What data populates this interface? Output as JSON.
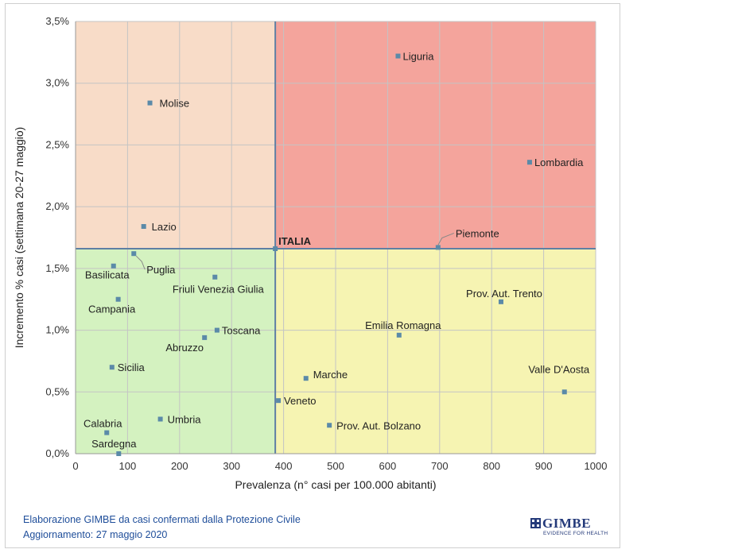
{
  "chart_data": {
    "type": "scatter",
    "title": "",
    "xlabel": "Prevalenza  (n° casi per 100.000 abitanti)",
    "ylabel": "Incremento %  casi (settimana 20-27 maggio)",
    "xlim": [
      0,
      1000
    ],
    "ylim": [
      0,
      3.5
    ],
    "x_ticks": [
      0,
      100,
      200,
      300,
      400,
      500,
      600,
      700,
      800,
      900,
      1000
    ],
    "x_tick_labels": [
      "0",
      "100",
      "200",
      "300",
      "400",
      "500",
      "600",
      "700",
      "800",
      "900",
      "1000"
    ],
    "y_ticks": [
      0,
      0.5,
      1.0,
      1.5,
      2.0,
      2.5,
      3.0,
      3.5
    ],
    "y_tick_labels": [
      "0,0%",
      "0,5%",
      "1,0%",
      "1,5%",
      "2,0%",
      "2,5%",
      "3,0%",
      "3,5%"
    ],
    "grid": true,
    "reference": {
      "name": "ITALIA",
      "x": 384,
      "y": 1.66
    },
    "quadrant_colors": {
      "top_left": "#f8dcc8",
      "top_right": "#f4a49c",
      "bottom_left": "#d4f2c0",
      "bottom_right": "#f6f4b2"
    },
    "marker_color": "#5b8aa8",
    "reference_line_color": "#5f7fa4",
    "points": [
      {
        "name": "Liguria",
        "x": 620,
        "y": 3.22
      },
      {
        "name": "Molise",
        "x": 143,
        "y": 2.84
      },
      {
        "name": "Lombardia",
        "x": 873,
        "y": 2.36
      },
      {
        "name": "Lazio",
        "x": 131,
        "y": 1.84
      },
      {
        "name": "Piemonte",
        "x": 697,
        "y": 1.67
      },
      {
        "name": "Puglia",
        "x": 112,
        "y": 1.62
      },
      {
        "name": "Basilicata",
        "x": 73,
        "y": 1.52
      },
      {
        "name": "Friuli Venezia Giulia",
        "x": 268,
        "y": 1.43
      },
      {
        "name": "Campania",
        "x": 82,
        "y": 1.25
      },
      {
        "name": "Prov. Aut. Trento",
        "x": 818,
        "y": 1.23
      },
      {
        "name": "Toscana",
        "x": 272,
        "y": 1.0
      },
      {
        "name": "Emilia Romagna",
        "x": 622,
        "y": 0.96
      },
      {
        "name": "Abruzzo",
        "x": 248,
        "y": 0.94
      },
      {
        "name": "Sicilia",
        "x": 70,
        "y": 0.7
      },
      {
        "name": "Marche",
        "x": 443,
        "y": 0.61
      },
      {
        "name": "Valle D'Aosta",
        "x": 940,
        "y": 0.5
      },
      {
        "name": "Veneto",
        "x": 390,
        "y": 0.43
      },
      {
        "name": "Umbria",
        "x": 163,
        "y": 0.28
      },
      {
        "name": "Prov. Aut. Bolzano",
        "x": 488,
        "y": 0.23
      },
      {
        "name": "Calabria",
        "x": 60,
        "y": 0.17
      },
      {
        "name": "Sardegna",
        "x": 83,
        "y": 0.0
      }
    ]
  },
  "footer": {
    "line1": "Elaborazione GIMBE da casi confermati dalla Protezione Civile",
    "line2": "Aggiornamento: 27 maggio 2020"
  },
  "logo": {
    "name": "GIMBE",
    "tagline": "EVIDENCE FOR HEALTH"
  }
}
